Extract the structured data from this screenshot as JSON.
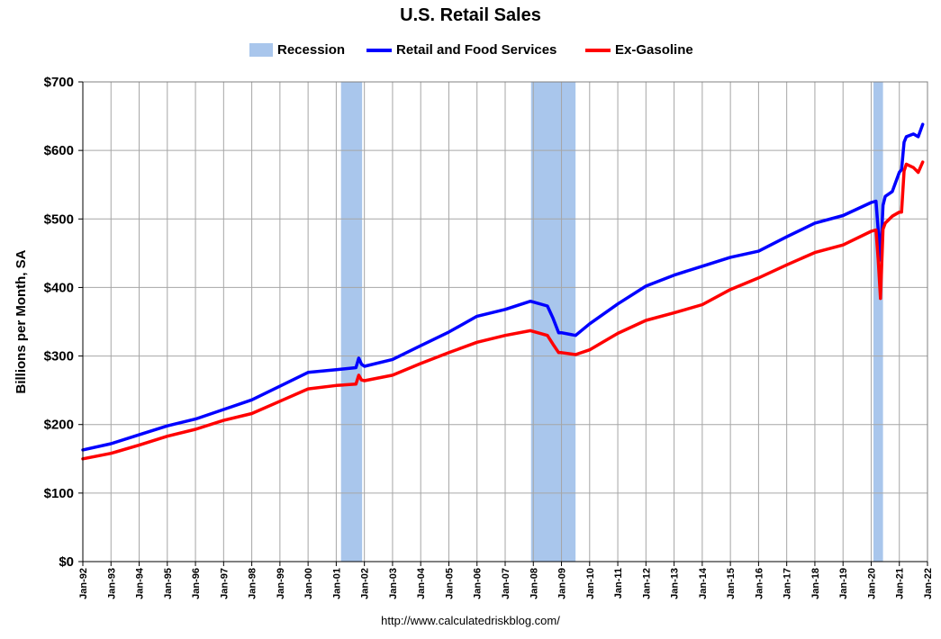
{
  "chart_data": {
    "type": "line",
    "title": "U.S. Retail Sales",
    "ylabel": "Billions per Month, SA",
    "xlabel": "",
    "ylim": [
      0,
      700
    ],
    "yticks": [
      0,
      100,
      200,
      300,
      400,
      500,
      600,
      700
    ],
    "ytick_labels": [
      "$0",
      "$100",
      "$200",
      "$300",
      "$400",
      "$500",
      "$600",
      "$700"
    ],
    "xlim": [
      1992.0,
      2022.0
    ],
    "xticks": [
      1992,
      1993,
      1994,
      1995,
      1996,
      1997,
      1998,
      1999,
      2000,
      2001,
      2002,
      2003,
      2004,
      2005,
      2006,
      2007,
      2008,
      2009,
      2010,
      2011,
      2012,
      2013,
      2014,
      2015,
      2016,
      2017,
      2018,
      2019,
      2020,
      2021,
      2022
    ],
    "xtick_labels": [
      "Jan-92",
      "Jan-93",
      "Jan-94",
      "Jan-95",
      "Jan-96",
      "Jan-97",
      "Jan-98",
      "Jan-99",
      "Jan-00",
      "Jan-01",
      "Jan-02",
      "Jan-03",
      "Jan-04",
      "Jan-05",
      "Jan-06",
      "Jan-07",
      "Jan-08",
      "Jan-09",
      "Jan-10",
      "Jan-11",
      "Jan-12",
      "Jan-13",
      "Jan-14",
      "Jan-15",
      "Jan-16",
      "Jan-17",
      "Jan-18",
      "Jan-19",
      "Jan-20",
      "Jan-21",
      "Jan-22"
    ],
    "grid": true,
    "legend_position": "top-center",
    "legend": [
      "Recession",
      "Retail and Food Services",
      "Ex-Gasoline"
    ],
    "recessions": [
      {
        "name": "Recession",
        "start": 2001.17,
        "end": 2001.92
      },
      {
        "name": "Recession",
        "start": 2007.92,
        "end": 2009.5
      },
      {
        "name": "Recession",
        "start": 2020.08,
        "end": 2020.42
      }
    ],
    "series": [
      {
        "name": "Retail and Food Services",
        "color": "#0000ff",
        "x": [
          1992.0,
          1993.0,
          1994.0,
          1995.0,
          1996.0,
          1997.0,
          1998.0,
          1999.0,
          2000.0,
          2001.0,
          2001.7,
          2001.8,
          2001.9,
          2002.0,
          2003.0,
          2004.0,
          2005.0,
          2006.0,
          2007.0,
          2007.9,
          2008.5,
          2008.7,
          2008.9,
          2009.0,
          2009.5,
          2010.0,
          2011.0,
          2012.0,
          2013.0,
          2014.0,
          2015.0,
          2016.0,
          2017.0,
          2018.0,
          2019.0,
          2020.0,
          2020.17,
          2020.25,
          2020.33,
          2020.42,
          2020.5,
          2020.75,
          2021.0,
          2021.08,
          2021.17,
          2021.25,
          2021.5,
          2021.67,
          2021.83
        ],
        "values": [
          163,
          172,
          185,
          198,
          208,
          222,
          236,
          256,
          276,
          280,
          283,
          297,
          288,
          285,
          295,
          315,
          335,
          358,
          368,
          380,
          373,
          355,
          334,
          334,
          330,
          347,
          376,
          402,
          418,
          431,
          444,
          453,
          474,
          494,
          505,
          524,
          526,
          483,
          440,
          520,
          533,
          540,
          568,
          572,
          612,
          620,
          624,
          620,
          638
        ]
      },
      {
        "name": "Ex-Gasoline",
        "color": "#ff0000",
        "x": [
          1992.0,
          1993.0,
          1994.0,
          1995.0,
          1996.0,
          1997.0,
          1998.0,
          1999.0,
          2000.0,
          2001.0,
          2001.7,
          2001.8,
          2001.9,
          2002.0,
          2003.0,
          2004.0,
          2005.0,
          2006.0,
          2007.0,
          2007.9,
          2008.5,
          2008.7,
          2008.9,
          2009.0,
          2009.5,
          2010.0,
          2011.0,
          2012.0,
          2013.0,
          2014.0,
          2015.0,
          2016.0,
          2017.0,
          2018.0,
          2019.0,
          2020.0,
          2020.17,
          2020.25,
          2020.33,
          2020.42,
          2020.5,
          2020.75,
          2021.0,
          2021.08,
          2021.17,
          2021.25,
          2021.5,
          2021.67,
          2021.83
        ],
        "values": [
          150,
          158,
          170,
          183,
          193,
          206,
          216,
          234,
          252,
          257,
          259,
          272,
          265,
          264,
          272,
          289,
          305,
          320,
          330,
          337,
          330,
          317,
          305,
          305,
          302,
          309,
          333,
          352,
          363,
          375,
          397,
          414,
          433,
          451,
          462,
          482,
          484,
          440,
          384,
          485,
          494,
          504,
          510,
          510,
          570,
          580,
          575,
          568,
          583
        ]
      }
    ],
    "source": "http://www.calculatedriskblog.com/",
    "colors": {
      "recession": "#a9c6ec",
      "grid": "#a6a6a6",
      "axis": "#000000"
    }
  }
}
